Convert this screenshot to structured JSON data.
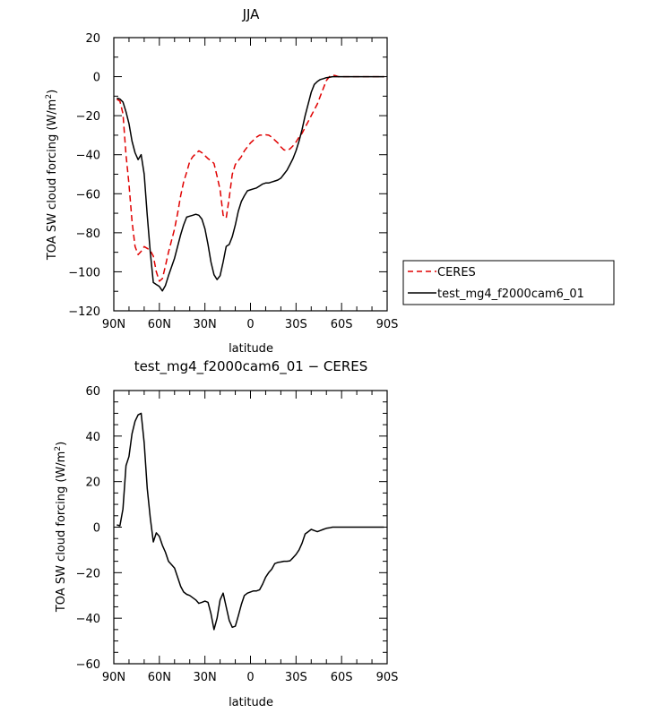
{
  "chart_data": [
    {
      "type": "line",
      "title": "JJA",
      "xlabel": "latitude",
      "ylabel": "TOA SW cloud forcing (W/m²)",
      "ylabel_main": "TOA SW cloud forcing (W/m",
      "ylabel_sup": "2",
      "ylabel_close": ")",
      "xlim": [
        90,
        -90
      ],
      "ylim": [
        -120,
        20
      ],
      "x_ticks": [
        90,
        60,
        30,
        0,
        -30,
        -60,
        -90
      ],
      "x_tick_labels": [
        "90N",
        "60N",
        "30N",
        "0",
        "30S",
        "60S",
        "90S"
      ],
      "y_ticks": [
        20,
        0,
        -20,
        -40,
        -60,
        -80,
        -100,
        -120
      ],
      "y_tick_labels": [
        "20",
        "0",
        "−20",
        "−40",
        "−60",
        "−80",
        "−100",
        "−120"
      ],
      "legend": {
        "placement": "right",
        "entries": [
          {
            "label": "CERES",
            "color": "#e00000",
            "dash": "dashed"
          },
          {
            "label": "test_mg4_f2000cam6_01",
            "color": "#000000",
            "dash": "solid"
          }
        ]
      },
      "series": [
        {
          "name": "CERES",
          "color": "#e00000",
          "dash": "dashed",
          "x": [
            88,
            86,
            84,
            82,
            80,
            78,
            76,
            74,
            72,
            70,
            68,
            66,
            64,
            62,
            60,
            58,
            56,
            54,
            52,
            50,
            48,
            46,
            44,
            42,
            40,
            38,
            36,
            34,
            32,
            30,
            28,
            26,
            24,
            22,
            20,
            18,
            16,
            14,
            12,
            10,
            8,
            6,
            4,
            2,
            0,
            -2,
            -4,
            -6,
            -8,
            -10,
            -12,
            -14,
            -16,
            -18,
            -20,
            -22,
            -24,
            -26,
            -28,
            -30,
            -32,
            -34,
            -36,
            -38,
            -40,
            -42,
            -44,
            -46,
            -48,
            -50,
            -52,
            -54,
            -56,
            -58,
            -60,
            -62,
            -64,
            -66,
            -68,
            -70,
            -72,
            -74,
            -76,
            -78,
            -80,
            -82,
            -84,
            -86,
            -88
          ],
          "values": [
            -11.6,
            -12.5,
            -19.0,
            -40.0,
            -55.0,
            -74.0,
            -87.0,
            -91.2,
            -89.5,
            -87.1,
            -88.0,
            -89.0,
            -92.0,
            -100.0,
            -104.8,
            -103.5,
            -97.0,
            -90.0,
            -84.0,
            -78.0,
            -70.0,
            -61.0,
            -54.0,
            -49.0,
            -43.5,
            -41.0,
            -39.5,
            -38.0,
            -39.0,
            -40.5,
            -42.0,
            -43.0,
            -44.5,
            -51.0,
            -58.0,
            -71.0,
            -72.5,
            -62.0,
            -50.0,
            -45.0,
            -43.0,
            -41.0,
            -38.0,
            -36.0,
            -34.0,
            -32.5,
            -31.0,
            -30.0,
            -30.0,
            -29.8,
            -30.0,
            -31.0,
            -32.5,
            -34.0,
            -36.0,
            -37.5,
            -37.8,
            -37.0,
            -35.5,
            -33.5,
            -31.0,
            -29.0,
            -26.0,
            -23.0,
            -20.0,
            -17.0,
            -14.0,
            -10.0,
            -6.0,
            -2.0,
            0.0,
            0.8,
            0.5,
            0.0,
            0.0,
            0.0,
            0.0,
            0.0,
            0.0,
            0.0,
            0.0,
            0.0,
            0.0,
            0.0,
            0.0,
            0.0,
            0.0,
            0.0,
            0.0
          ]
        },
        {
          "name": "test_mg4_f2000cam6_01",
          "color": "#000000",
          "dash": "solid",
          "x": [
            88,
            86,
            84,
            82,
            80,
            78,
            76,
            74,
            72,
            70,
            68,
            66,
            64,
            62,
            60,
            58,
            56,
            54,
            52,
            50,
            48,
            46,
            44,
            42,
            40,
            38,
            36,
            34,
            32,
            30,
            28,
            26,
            24,
            22,
            20,
            18,
            16,
            14,
            12,
            10,
            8,
            6,
            4,
            2,
            0,
            -2,
            -4,
            -6,
            -8,
            -10,
            -12,
            -14,
            -16,
            -18,
            -20,
            -22,
            -24,
            -26,
            -28,
            -30,
            -32,
            -34,
            -36,
            -38,
            -40,
            -42,
            -44,
            -46,
            -48,
            -50,
            -52,
            -54,
            -56,
            -58,
            -60,
            -62,
            -64,
            -66,
            -68,
            -70,
            -72,
            -74,
            -76,
            -78,
            -80,
            -82,
            -84,
            -86,
            -88
          ],
          "values": [
            -11.0,
            -11.5,
            -13.0,
            -18.0,
            -24.0,
            -33.0,
            -39.0,
            -42.5,
            -40.0,
            -50.0,
            -71.0,
            -90.0,
            -105.5,
            -106.5,
            -107.5,
            -109.8,
            -107.0,
            -102.0,
            -97.5,
            -93.0,
            -87.0,
            -81.0,
            -76.0,
            -72.0,
            -71.5,
            -71.0,
            -70.5,
            -71.0,
            -73.0,
            -78.0,
            -86.0,
            -95.0,
            -101.5,
            -104.0,
            -102.0,
            -95.0,
            -87.0,
            -86.0,
            -82.0,
            -76.0,
            -69.0,
            -64.0,
            -61.0,
            -58.5,
            -58.0,
            -57.5,
            -57.0,
            -56.0,
            -55.0,
            -54.5,
            -54.5,
            -54.0,
            -53.5,
            -53.0,
            -52.0,
            -50.0,
            -48.0,
            -45.0,
            -42.0,
            -38.0,
            -33.0,
            -27.0,
            -20.0,
            -14.0,
            -8.0,
            -4.0,
            -2.5,
            -1.5,
            -1.0,
            -0.5,
            -0.3,
            0.0,
            0.0,
            0.0,
            0.0,
            0.0,
            0.0,
            0.0,
            0.0,
            0.0,
            0.0,
            0.0,
            0.0,
            0.0,
            0.0,
            0.0,
            0.0,
            0.0,
            0.0
          ]
        }
      ]
    },
    {
      "type": "line",
      "title": "test_mg4_f2000cam6_01 − CERES",
      "xlabel": "latitude",
      "ylabel": "TOA SW cloud forcing (W/m²)",
      "ylabel_main": "TOA SW cloud forcing (W/m",
      "ylabel_sup": "2",
      "ylabel_close": ")",
      "xlim": [
        90,
        -90
      ],
      "ylim": [
        -60,
        60
      ],
      "x_ticks": [
        90,
        60,
        30,
        0,
        -30,
        -60,
        -90
      ],
      "x_tick_labels": [
        "90N",
        "60N",
        "30N",
        "0",
        "30S",
        "60S",
        "90S"
      ],
      "y_ticks": [
        60,
        40,
        20,
        0,
        -20,
        -40,
        -60
      ],
      "y_tick_labels": [
        "60",
        "40",
        "20",
        "0",
        "−20",
        "−40",
        "−60"
      ],
      "series": [
        {
          "name": "test_mg4_f2000cam6_01 − CERES",
          "color": "#000000",
          "dash": "solid",
          "x": [
            88,
            86,
            84,
            82,
            80,
            78,
            76,
            74,
            72,
            70,
            68,
            66,
            64,
            62,
            60,
            58,
            56,
            54,
            52,
            50,
            48,
            46,
            44,
            42,
            40,
            38,
            36,
            34,
            32,
            30,
            28,
            26,
            24,
            22,
            20,
            18,
            16,
            14,
            12,
            10,
            8,
            6,
            4,
            2,
            0,
            -2,
            -4,
            -6,
            -8,
            -10,
            -12,
            -14,
            -16,
            -18,
            -20,
            -22,
            -24,
            -26,
            -28,
            -30,
            -32,
            -34,
            -36,
            -38,
            -40,
            -42,
            -44,
            -46,
            -48,
            -50,
            -52,
            -54,
            -56,
            -58,
            -60,
            -62,
            -64,
            -66,
            -68,
            -70,
            -72,
            -74,
            -76,
            -78,
            -80,
            -82,
            -84,
            -86,
            -88
          ],
          "values": [
            1.0,
            0.6,
            8.0,
            27.0,
            31.0,
            41.0,
            46.5,
            49.3,
            50.0,
            37.0,
            17.0,
            4.0,
            -6.5,
            -2.5,
            -4.0,
            -8.0,
            -11.0,
            -15.0,
            -16.5,
            -18.0,
            -22.0,
            -26.0,
            -28.5,
            -29.5,
            -30.0,
            -31.0,
            -32.0,
            -33.5,
            -33.0,
            -32.5,
            -33.0,
            -38.0,
            -45.0,
            -40.0,
            -32.0,
            -29.0,
            -35.0,
            -41.0,
            -44.0,
            -43.5,
            -39.0,
            -34.0,
            -30.0,
            -29.0,
            -28.5,
            -28.0,
            -28.0,
            -27.5,
            -25.0,
            -22.0,
            -20.0,
            -18.5,
            -16.0,
            -15.5,
            -15.3,
            -15.0,
            -15.0,
            -14.8,
            -13.5,
            -12.0,
            -10.0,
            -7.0,
            -3.0,
            -2.0,
            -1.0,
            -1.5,
            -2.0,
            -1.5,
            -1.0,
            -0.5,
            -0.3,
            0.0,
            0.0,
            0.0,
            0.0,
            0.0,
            0.0,
            0.0,
            0.0,
            0.0,
            0.0,
            0.0,
            0.0,
            0.0,
            0.0,
            0.0,
            0.0,
            0.0,
            0.0
          ]
        }
      ]
    }
  ]
}
